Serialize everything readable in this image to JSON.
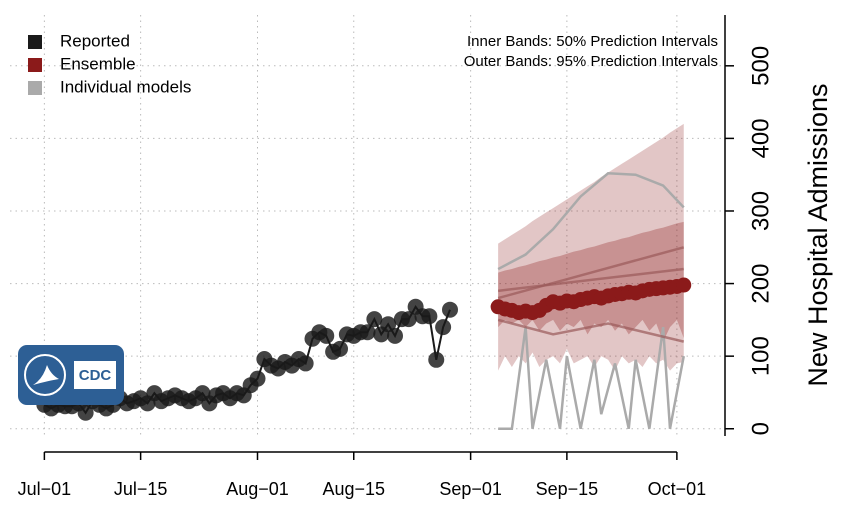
{
  "chart_data": {
    "type": "forecast",
    "annotations": [
      "Inner Bands: 50% Prediction Intervals",
      "Outer Bands: 95% Prediction Intervals"
    ],
    "y_label": "New Hospital Admissions",
    "logo_text": "CDC",
    "xlim": [
      -5,
      99
    ],
    "xticks": [
      {
        "value": 0,
        "label": "Jul−01"
      },
      {
        "value": 14,
        "label": "Jul−15"
      },
      {
        "value": 31,
        "label": "Aug−01"
      },
      {
        "value": 45,
        "label": "Aug−15"
      },
      {
        "value": 62,
        "label": "Sep−01"
      },
      {
        "value": 76,
        "label": "Sep−15"
      },
      {
        "value": 92,
        "label": "Oct−01"
      }
    ],
    "ylim": [
      -10,
      570
    ],
    "yticks": [
      0,
      100,
      200,
      300,
      400,
      500
    ],
    "grid": true,
    "legend": "top-left",
    "series": [
      {
        "name": "Reported",
        "color": "#1a1a1a",
        "x": [
          0,
          1,
          2,
          3,
          4,
          5,
          6,
          7,
          8,
          9,
          10,
          11,
          12,
          13,
          14,
          15,
          16,
          17,
          18,
          19,
          20,
          21,
          22,
          23,
          24,
          25,
          26,
          27,
          28,
          29,
          30,
          31,
          32,
          33,
          34,
          35,
          36,
          37,
          38,
          39,
          40,
          41,
          42,
          43,
          44,
          45,
          46,
          47,
          48,
          49,
          50,
          51,
          52,
          53,
          54,
          55,
          56,
          57,
          58,
          59
        ],
        "values": [
          33,
          28,
          33,
          31,
          31,
          35,
          22,
          38,
          33,
          28,
          33,
          42,
          35,
          38,
          42,
          35,
          49,
          38,
          42,
          46,
          42,
          38,
          42,
          49,
          35,
          46,
          49,
          42,
          49,
          46,
          60,
          69,
          96,
          87,
          83,
          92,
          87,
          96,
          90,
          124,
          133,
          128,
          106,
          110,
          130,
          128,
          133,
          133,
          151,
          130,
          144,
          128,
          151,
          151,
          168,
          155,
          155,
          95,
          140,
          164
        ]
      },
      {
        "name": "Ensemble",
        "color": "#8b1a1a",
        "x": [
          66,
          67,
          68,
          69,
          70,
          71,
          72,
          73,
          74,
          75,
          76,
          77,
          78,
          79,
          80,
          81,
          82,
          83,
          84,
          85,
          86,
          87,
          88,
          89,
          90,
          91,
          92,
          93
        ],
        "values": [
          168,
          165,
          163,
          160,
          162,
          160,
          163,
          170,
          175,
          173,
          176,
          175,
          178,
          180,
          182,
          180,
          183,
          185,
          186,
          188,
          187,
          190,
          192,
          193,
          194,
          195,
          196,
          198
        ],
        "lower_50": [
          140,
          150,
          145,
          150,
          140,
          150,
          135,
          145,
          150,
          135,
          145,
          140,
          150,
          130,
          145,
          140,
          150,
          135,
          145,
          130,
          140,
          150,
          135,
          145,
          120,
          140,
          150,
          125
        ],
        "upper_50": [
          215,
          218,
          220,
          223,
          225,
          228,
          231,
          233,
          236,
          238,
          241,
          244,
          246,
          249,
          251,
          254,
          257,
          259,
          262,
          264,
          267,
          270,
          272,
          275,
          277,
          280,
          283,
          285
        ],
        "lower_95": [
          80,
          100,
          85,
          100,
          90,
          105,
          85,
          95,
          100,
          90,
          110,
          90,
          95,
          100,
          85,
          100,
          95,
          80,
          100,
          90,
          95,
          85,
          100,
          90,
          95,
          80,
          90,
          92
        ],
        "upper_95": [
          255,
          261,
          267,
          273,
          279,
          286,
          292,
          298,
          304,
          310,
          316,
          322,
          328,
          334,
          340,
          347,
          353,
          359,
          365,
          371,
          377,
          383,
          389,
          395,
          401,
          408,
          414,
          420
        ]
      },
      {
        "name": "Individual models",
        "color": "#aaaaaa",
        "models": [
          {
            "x": [
              66,
              70,
              74,
              78,
              82,
              86,
              90,
              93
            ],
            "values": [
              220,
              240,
              275,
              320,
              352,
              350,
              335,
              305
            ]
          },
          {
            "x": [
              66,
              68,
              70,
              71,
              73,
              75,
              76,
              78,
              80,
              81,
              83,
              85,
              86,
              88,
              90,
              91,
              93
            ],
            "values": [
              0,
              0,
              140,
              0,
              95,
              0,
              100,
              0,
              95,
              20,
              90,
              0,
              95,
              0,
              140,
              0,
              100
            ]
          },
          {
            "x": [
              66,
              93
            ],
            "values": [
              180,
              250
            ]
          },
          {
            "x": [
              66,
              93
            ],
            "values": [
              190,
              220
            ]
          },
          {
            "x": [
              66,
              74,
              82,
              93
            ],
            "values": [
              150,
              130,
              145,
              120
            ]
          }
        ]
      }
    ]
  }
}
